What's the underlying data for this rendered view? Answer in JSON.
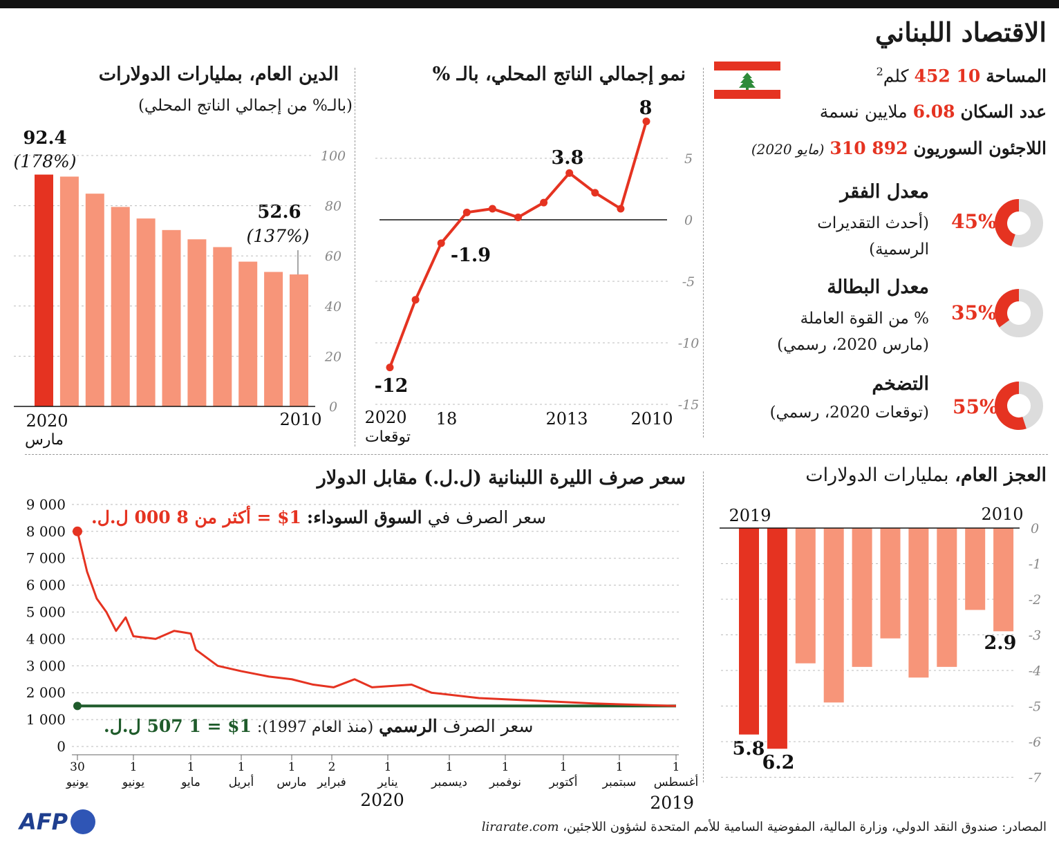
{
  "title": "الاقتصاد اللبناني",
  "facts": {
    "area_label": "المساحة",
    "area_value": "10 452",
    "area_unit": "كلم",
    "area_sup": "2",
    "population_label": "عدد السكان",
    "population_value": "6.08",
    "population_unit": "ملايين نسمة",
    "refugees_label": "اللاجئون السوريون",
    "refugees_value": "892 310",
    "refugees_note": "(مايو 2020)"
  },
  "indicators": [
    {
      "title": "معدل الفقر",
      "line1": "(أحدث التقديرات",
      "line2": "الرسمية)",
      "value_text": "45%",
      "value": 45
    },
    {
      "title": "معدل البطالة",
      "line1": "% من القوة العاملة",
      "line2": "(مارس 2020، رسمي)",
      "value_text": "35%",
      "value": 35
    },
    {
      "title": "التضخم",
      "line1": "(توقعات 2020، رسمي)",
      "line2": "",
      "value_text": "55%",
      "value": 55
    }
  ],
  "colors": {
    "accent": "#e53321",
    "light": "#f79579",
    "green": "#1f5b2b",
    "donut_bg": "#dcdcdc",
    "flag_red": "#e53321",
    "cedar": "#2e8b3a"
  },
  "debt": {
    "title": "الدين العام، بمليارات الدولارات",
    "subtitle": "(بالـ% من إجمالي الناتج المحلي)",
    "label_first": "92.4",
    "label_first_pct": "(178%)",
    "label_last": "52.6",
    "label_last_pct": "(137%)",
    "x_left": "2020",
    "x_left_sub": "مارس",
    "x_right": "2010"
  },
  "gdp": {
    "title": "نمو إجمالي الناتج المحلي، بالـ %",
    "label_max": "8",
    "label_mid": "3.8",
    "label_neg": "-1.9",
    "label_min": "-12",
    "x_2020": "2020",
    "x_2020_sub": "توقعات",
    "x_18": "18",
    "x_2013": "2013",
    "x_2010": "2010"
  },
  "fx": {
    "title": "سعر صرف الليرة اللبنانية (ل.ل.) مقابل الدولار",
    "black_text": "سعر الصرف في",
    "black_bold": "السوق السوداء:",
    "black_value": "1$ = أكثر من 8 000 ل.ل.",
    "official_text": "سعر الصرف",
    "official_bold": "الرسمي",
    "official_note": "(منذ العام 1997):",
    "official_value": "1$ = 1 507 ل.ل.",
    "year_2020": "2020",
    "year_2019": "2019",
    "x_ticks": [
      {
        "d": "30",
        "m": "يونيو"
      },
      {
        "d": "1",
        "m": "يونيو"
      },
      {
        "d": "1",
        "m": "مايو"
      },
      {
        "d": "1",
        "m": "أبريل"
      },
      {
        "d": "1",
        "m": "مارس"
      },
      {
        "d": "2",
        "m": "فبراير"
      },
      {
        "d": "1",
        "m": "يناير"
      },
      {
        "d": "1",
        "m": "ديسمبر"
      },
      {
        "d": "1",
        "m": "نوفمبر"
      },
      {
        "d": "1",
        "m": "أكتوبر"
      },
      {
        "d": "1",
        "m": "سبتمبر"
      },
      {
        "d": "1",
        "m": "أغسطس"
      }
    ]
  },
  "deficit": {
    "title": "العجز العام،",
    "title_rest": "بمليارات الدولارات",
    "label_2019": "2019",
    "label_2010": "2010",
    "label_a": "5.8",
    "label_b": "6.2",
    "label_c": "2.9"
  },
  "sources": "المصادر: صندوق النقد الدولي، وزارة المالية، المفوضية السامية للأمم المتحدة لشؤون اللاجئين،",
  "sources_site": "lirarate.com",
  "logo": "AFP",
  "chart_data": [
    {
      "type": "bar",
      "title": "الدين العام، بمليارات الدولارات",
      "categories": [
        "2020 مارس",
        "2019",
        "2018",
        "2017",
        "2016",
        "2015",
        "2014",
        "2013",
        "2012",
        "2011",
        "2010"
      ],
      "values": [
        92.4,
        91.6,
        84.8,
        79.5,
        74.9,
        70.3,
        66.6,
        63.5,
        57.7,
        53.6,
        52.6
      ],
      "ylim": [
        0,
        100
      ],
      "yticks": [
        0,
        20,
        40,
        60,
        80,
        100
      ]
    },
    {
      "type": "line",
      "title": "نمو إجمالي الناتج المحلي، بالـ %",
      "x": [
        "2020",
        "2019",
        "2018",
        "2017",
        "2016",
        "2015",
        "2014",
        "2013",
        "2012",
        "2011",
        "2010"
      ],
      "values": [
        -12,
        -6.5,
        -1.9,
        0.6,
        0.9,
        0.2,
        1.4,
        3.8,
        2.2,
        0.9,
        8
      ],
      "ylim": [
        -15,
        8
      ],
      "yticks": [
        -15,
        -10,
        -5,
        0,
        5
      ]
    },
    {
      "type": "line",
      "title": "سعر صرف الليرة اللبنانية (ل.ل.) مقابل الدولار",
      "series": [
        {
          "name": "السوق السوداء",
          "x": [
            "2019-08-01",
            "2019-09-15",
            "2019-10-15",
            "2019-11-15",
            "2019-12-10",
            "2019-12-20",
            "2020-01-10",
            "2020-01-20",
            "2020-02-01",
            "2020-02-15",
            "2020-03-01",
            "2020-03-15",
            "2020-04-01",
            "2020-04-15",
            "2020-04-28",
            "2020-05-01",
            "2020-05-10",
            "2020-05-20",
            "2020-06-01",
            "2020-06-05",
            "2020-06-10",
            "2020-06-15",
            "2020-06-20",
            "2020-06-25",
            "2020-06-30"
          ],
          "values": [
            1507,
            1600,
            1700,
            1800,
            2000,
            2300,
            2200,
            2500,
            2200,
            2300,
            2500,
            2600,
            2800,
            3000,
            3600,
            4200,
            4300,
            4000,
            4100,
            4800,
            4300,
            5000,
            5500,
            6500,
            8000
          ]
        },
        {
          "name": "الرسمي",
          "x": [
            "2019-08-01",
            "2020-06-30"
          ],
          "values": [
            1507,
            1507
          ]
        }
      ],
      "ylim": [
        0,
        9000
      ],
      "yticks": [
        0,
        1000,
        2000,
        3000,
        4000,
        5000,
        6000,
        7000,
        8000,
        9000
      ]
    },
    {
      "type": "bar",
      "title": "العجز العام، بمليارات الدولارات",
      "categories": [
        "2019",
        "2018",
        "2017",
        "2016",
        "2015",
        "2014",
        "2013",
        "2012",
        "2011",
        "2010"
      ],
      "values": [
        -5.8,
        -6.2,
        -3.8,
        -4.9,
        -3.9,
        -3.1,
        -4.2,
        -3.9,
        -2.3,
        -2.9
      ],
      "ylim": [
        -7,
        0
      ],
      "yticks": [
        0,
        -1,
        -2,
        -3,
        -4,
        -5,
        -6,
        -7
      ]
    }
  ]
}
